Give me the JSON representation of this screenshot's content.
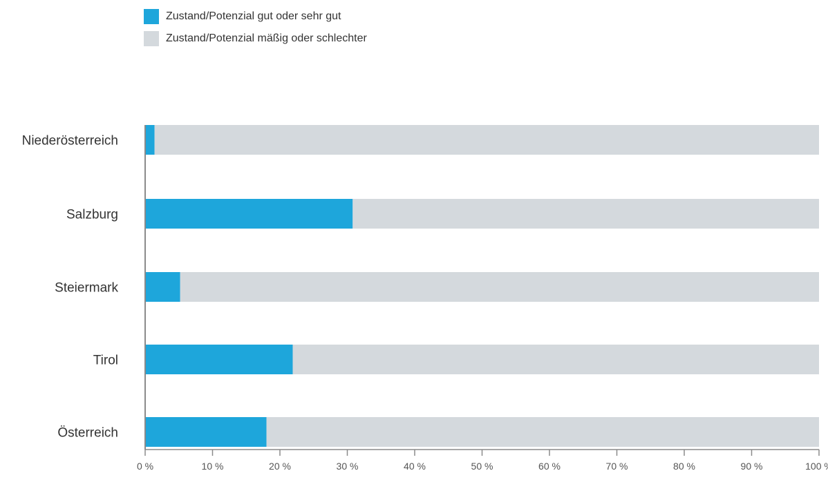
{
  "chart_data": {
    "type": "bar",
    "orientation": "horizontal",
    "stacked": true,
    "categories": [
      "Niederösterreich",
      "Salzburg",
      "Steiermark",
      "Tirol",
      "Österreich"
    ],
    "series": [
      {
        "name": "Zustand/Potenzial gut oder sehr gut",
        "color": "#1ea6db",
        "values": [
          1.4,
          30.8,
          5.2,
          21.9,
          18.0
        ]
      },
      {
        "name": "Zustand/Potenzial mäßig oder schlechter",
        "color": "#d4d9dd",
        "values": [
          98.6,
          69.2,
          94.8,
          78.1,
          82.0
        ]
      }
    ],
    "xlim": [
      0,
      100
    ],
    "xticks": [
      "0 %",
      "10 %",
      "20 %",
      "30 %",
      "40 %",
      "50 %",
      "60 %",
      "70 %",
      "80 %",
      "90 %",
      "100 %"
    ],
    "xlabel": "",
    "ylabel": "",
    "title": "",
    "grid": false,
    "legend_position": "top-left"
  }
}
